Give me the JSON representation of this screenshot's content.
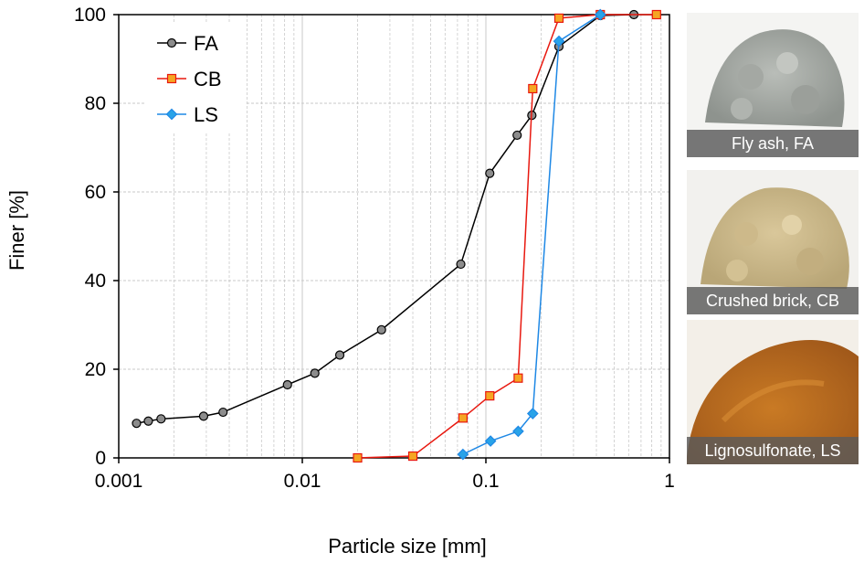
{
  "chart_data": {
    "type": "line",
    "xscale": "log",
    "xlim": [
      0.001,
      1
    ],
    "ylim": [
      0,
      100
    ],
    "xlabel": "Particle size [mm]",
    "ylabel": "Finer [%]",
    "xticks": [
      "0.001",
      "0.01",
      "0.1",
      "1"
    ],
    "yticks": [
      "0",
      "20",
      "40",
      "60",
      "80",
      "100"
    ],
    "grid": true,
    "legend_position": "top-left",
    "series": [
      {
        "name": "FA",
        "color": "#000000",
        "marker": "circle",
        "marker_fill": "#8c8c8c",
        "x": [
          0.00125,
          0.00145,
          0.0017,
          0.0029,
          0.0037,
          0.0083,
          0.0117,
          0.016,
          0.027,
          0.073,
          0.105,
          0.148,
          0.178,
          0.25,
          0.42,
          0.64
        ],
        "y": [
          7.8,
          8.3,
          8.8,
          9.4,
          10.3,
          16.5,
          19.1,
          23.2,
          28.9,
          43.7,
          64.2,
          72.8,
          77.3,
          92.8,
          99.8,
          100
        ]
      },
      {
        "name": "CB",
        "color": "#e8180f",
        "marker": "square",
        "marker_fill": "#f5a623",
        "x": [
          0.02,
          0.04,
          0.075,
          0.105,
          0.15,
          0.18,
          0.25,
          0.42,
          0.85
        ],
        "y": [
          0,
          0.4,
          9,
          14,
          18,
          83.3,
          99.2,
          100,
          100
        ]
      },
      {
        "name": "LS",
        "color": "#1e88e5",
        "marker": "diamond",
        "marker_fill": "#29a3e8",
        "x": [
          0.075,
          0.106,
          0.15,
          0.18,
          0.25,
          0.42
        ],
        "y": [
          0.8,
          3.8,
          6.0,
          10.0,
          94.0,
          100
        ]
      }
    ]
  },
  "photos": [
    {
      "caption": "Fly ash, FA"
    },
    {
      "caption": "Crushed brick, CB"
    },
    {
      "caption": "Lignosulfonate, LS"
    }
  ]
}
